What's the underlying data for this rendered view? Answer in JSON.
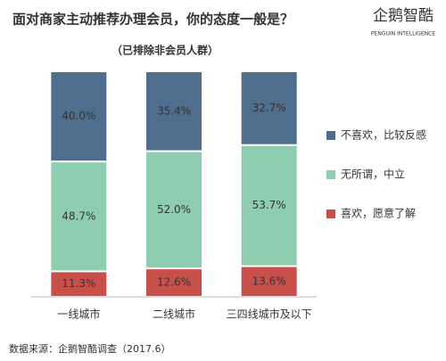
{
  "chart_data": {
    "type": "stacked_bar",
    "title": "面对商家主动推荐办理会员，你的态度一般是？",
    "subtitle": "（已排除非会员人群）",
    "brand": "企鹅智酷",
    "brand_sub": "PENGUIN INTELLIGENCE",
    "source": "数据来源：企鹅智酷调查（2017.6）",
    "categories": [
      "一线城市",
      "二线城市",
      "三四线城市及以下"
    ],
    "series": [
      {
        "name": "喜欢，愿意了解",
        "color": "#c8504b",
        "values": [
          11.3,
          12.6,
          13.6
        ],
        "value_labels": [
          "11.3%",
          "12.6%",
          "13.6%"
        ]
      },
      {
        "name": "无所谓，中立",
        "color": "#8fcdb0",
        "values": [
          48.7,
          52.0,
          53.7
        ],
        "value_labels": [
          "48.7%",
          "52.0%",
          "53.7%"
        ]
      },
      {
        "name": "不喜欢，比较反感",
        "color": "#4f6d8c",
        "values": [
          40.0,
          35.4,
          32.7
        ],
        "value_labels": [
          "40.0%",
          "35.4%",
          "32.7%"
        ]
      }
    ]
  }
}
